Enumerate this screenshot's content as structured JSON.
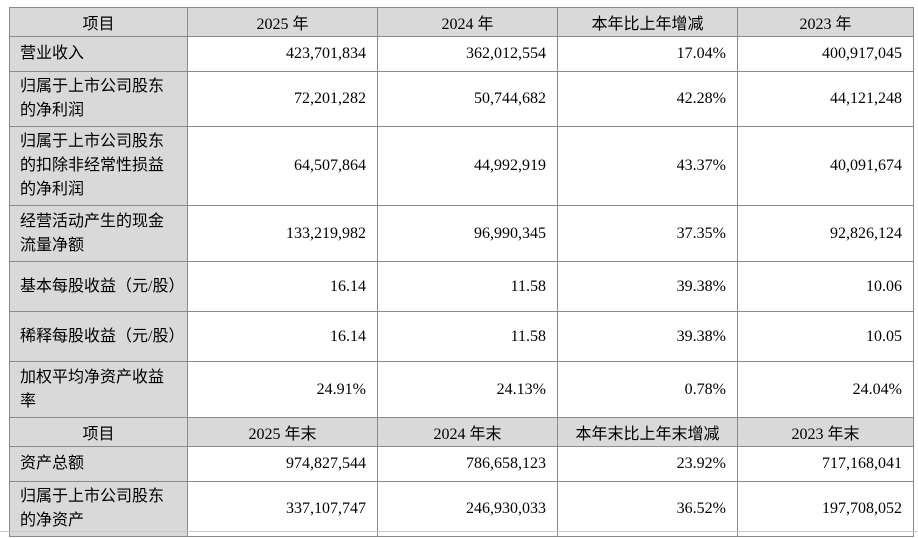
{
  "table": {
    "colors": {
      "header_bg": "#d9d9d9",
      "label_bg": "#d9d9d9",
      "border": "#8a8a8a",
      "cell_bg": "#ffffff",
      "divider": "#c9c9c9"
    },
    "sections": [
      {
        "header": [
          "项目",
          "2025 年",
          "2024 年",
          "本年比上年增减",
          "2023 年"
        ],
        "rows": [
          {
            "label": "营业收入",
            "values": [
              "423,701,834",
              "362,012,554",
              "17.04%",
              "400,917,045"
            ]
          },
          {
            "label": "归属于上市公司股东的净利润",
            "values": [
              "72,201,282",
              "50,744,682",
              "42.28%",
              "44,121,248"
            ]
          },
          {
            "label": "归属于上市公司股东的扣除非经常性损益的净利润",
            "values": [
              "64,507,864",
              "44,992,919",
              "43.37%",
              "40,091,674"
            ]
          },
          {
            "label": "经营活动产生的现金流量净额",
            "values": [
              "133,219,982",
              "96,990,345",
              "37.35%",
              "92,826,124"
            ]
          },
          {
            "label": "基本每股收益（元/股）",
            "values": [
              "16.14",
              "11.58",
              "39.38%",
              "10.06"
            ]
          },
          {
            "label": "稀释每股收益（元/股）",
            "values": [
              "16.14",
              "11.58",
              "39.38%",
              "10.05"
            ]
          },
          {
            "label": "加权平均净资产收益率",
            "values": [
              "24.91%",
              "24.13%",
              "0.78%",
              "24.04%"
            ]
          }
        ]
      },
      {
        "header": [
          "项目",
          "2025 年末",
          "2024 年末",
          "本年末比上年末增减",
          "2023 年末"
        ],
        "rows": [
          {
            "label": "资产总额",
            "values": [
              "974,827,544",
              "786,658,123",
              "23.92%",
              "717,168,041"
            ]
          },
          {
            "label": "归属于上市公司股东的净资产",
            "values": [
              "337,107,747",
              "246,930,033",
              "36.52%",
              "197,708,052"
            ]
          }
        ]
      }
    ]
  }
}
